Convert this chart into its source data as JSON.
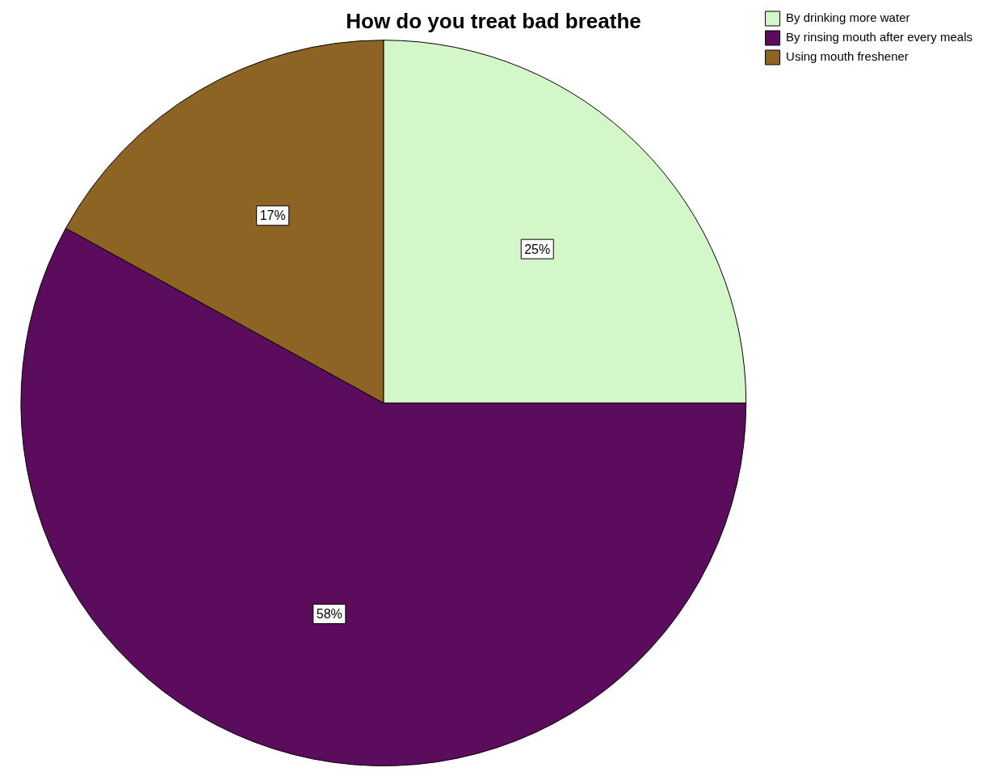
{
  "chart_data": {
    "type": "pie",
    "title": "How do you treat bad breathe",
    "categories": [
      "By drinking more water",
      "By rinsing mouth after every meals",
      "Using mouth freshener"
    ],
    "values": [
      25,
      58,
      17
    ],
    "colors": [
      "#d4f7c9",
      "#5c0c5c",
      "#8e6424"
    ],
    "value_labels": [
      "25%",
      "58%",
      "17%"
    ],
    "legend": "top right"
  }
}
